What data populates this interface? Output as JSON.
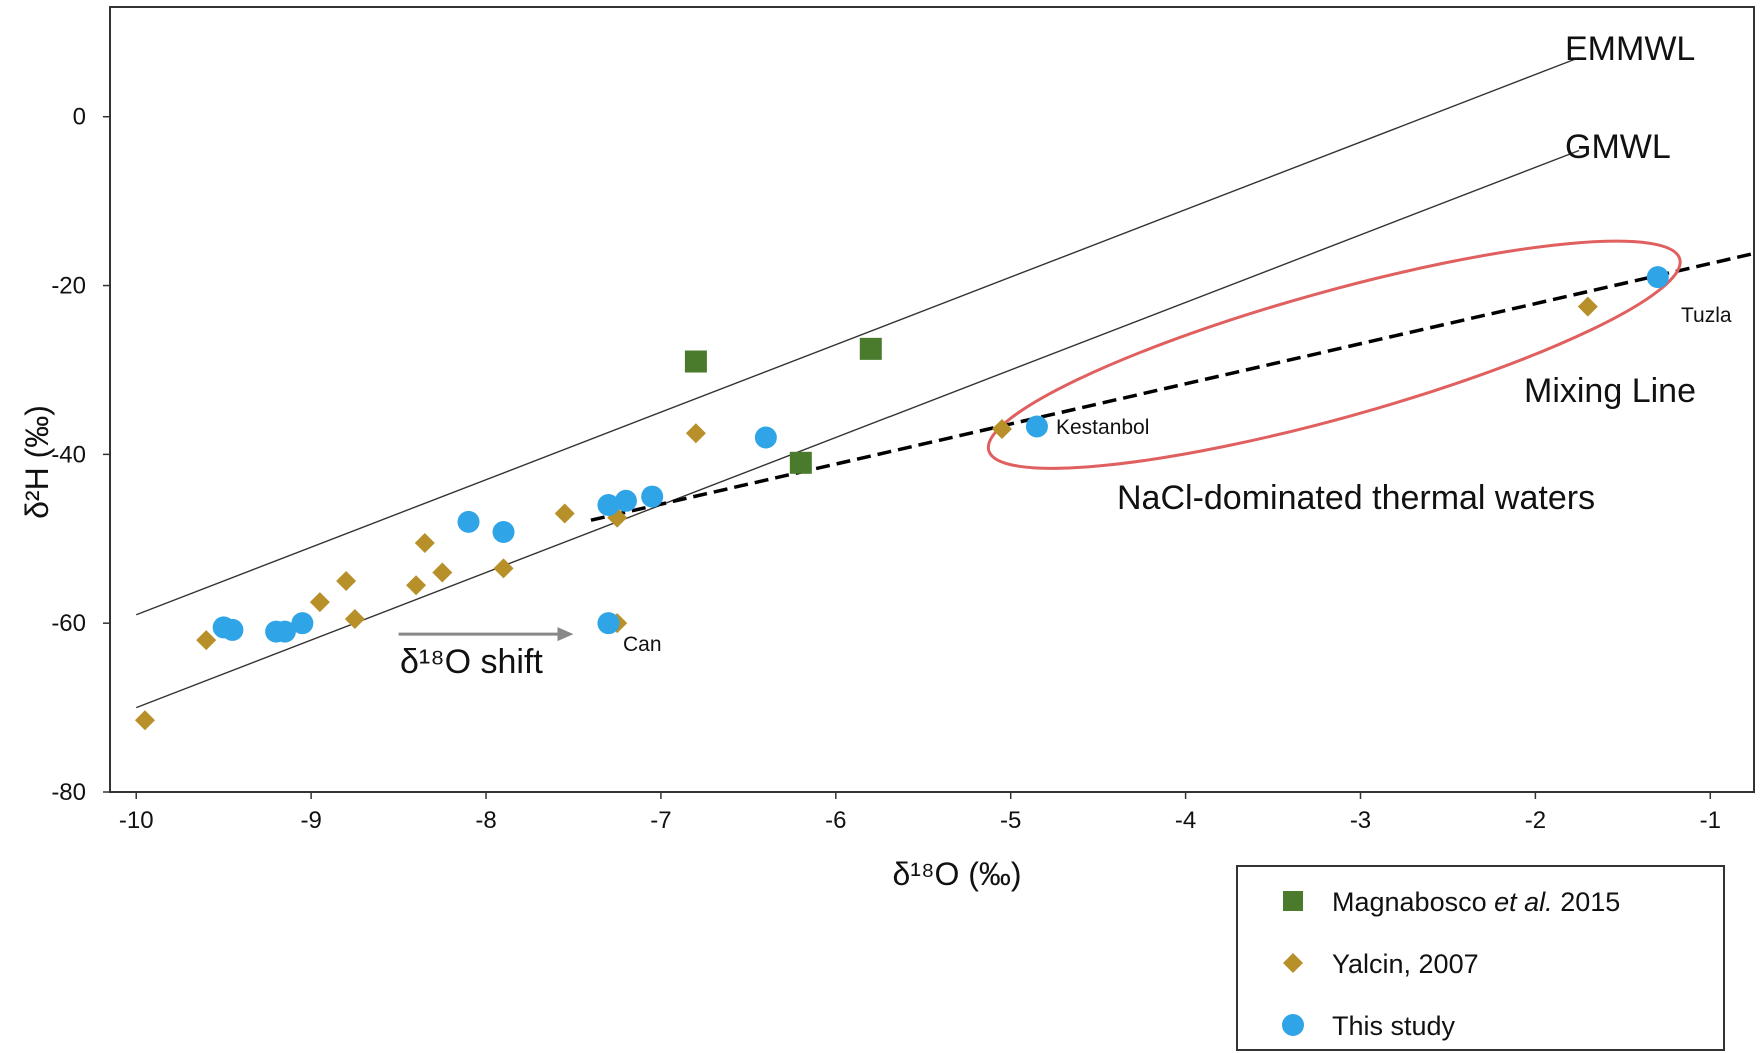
{
  "chart_data": {
    "type": "scatter",
    "xlabel": "δ¹⁸O (‰)",
    "ylabel": "δ²H (‰)",
    "xlim": [
      -10.15,
      -0.75
    ],
    "ylim": [
      -80,
      13
    ],
    "xticks": [
      -10,
      -9,
      -8,
      -7,
      -6,
      -5,
      -4,
      -3,
      -2,
      -1
    ],
    "yticks": [
      0,
      -20,
      -40,
      -60,
      -80
    ],
    "grid": false,
    "series": [
      {
        "name": "Magnabosco",
        "legend_label": "Magnabosco",
        "legend_italic": "et al.",
        "legend_suffix": "2015",
        "marker": "square",
        "color": "#4a7a2c",
        "points": [
          [
            -6.8,
            -29
          ],
          [
            -5.8,
            -27.5
          ],
          [
            -6.2,
            -41
          ]
        ]
      },
      {
        "name": "Yalcin, 2007",
        "legend_label": "Yalcin, 2007",
        "marker": "diamond",
        "color": "#b8902a",
        "points": [
          [
            -9.95,
            -71.5
          ],
          [
            -9.6,
            -62
          ],
          [
            -9.15,
            -61
          ],
          [
            -8.95,
            -57.5
          ],
          [
            -8.8,
            -55
          ],
          [
            -8.75,
            -59.5
          ],
          [
            -8.4,
            -55.5
          ],
          [
            -8.35,
            -50.5
          ],
          [
            -8.25,
            -54
          ],
          [
            -7.9,
            -53.5
          ],
          [
            -7.55,
            -47
          ],
          [
            -7.25,
            -47.5
          ],
          [
            -7.25,
            -60
          ],
          [
            -6.8,
            -37.5
          ],
          [
            -5.05,
            -37
          ],
          [
            -1.7,
            -22.5
          ]
        ]
      },
      {
        "name": "This study",
        "legend_label": "This study",
        "marker": "circle",
        "color": "#2fa4e7",
        "points": [
          [
            -9.5,
            -60.5
          ],
          [
            -9.45,
            -60.8
          ],
          [
            -9.2,
            -61
          ],
          [
            -9.15,
            -61
          ],
          [
            -9.05,
            -60
          ],
          [
            -8.1,
            -48
          ],
          [
            -7.9,
            -49.2
          ],
          [
            -7.3,
            -46
          ],
          [
            -7.2,
            -45.5
          ],
          [
            -7.05,
            -45
          ],
          [
            -7.3,
            -60
          ],
          [
            -6.4,
            -38
          ],
          [
            -4.85,
            -36.7
          ],
          [
            -1.3,
            -19
          ]
        ]
      }
    ],
    "lines": [
      {
        "name": "EMMWL",
        "style": "solid",
        "x": [
          -10,
          -1.75
        ],
        "y": [
          -59,
          7
        ]
      },
      {
        "name": "GMWL",
        "style": "solid",
        "x": [
          -10,
          -1.75
        ],
        "y": [
          -70,
          -4
        ]
      },
      {
        "name": "Mixing Line",
        "style": "dashed",
        "x": [
          -7.4,
          -0.75
        ],
        "y": [
          -47.8,
          -16.2
        ]
      }
    ],
    "ellipse": {
      "name": "NaCl-dominated thermal waters",
      "center": [
        -3.15,
        -28.2
      ],
      "rx": 2.05,
      "ry": 7.5,
      "angle_deg": -15.5,
      "color": "#e06060"
    },
    "arrow": {
      "label": "δ¹⁸O shift",
      "from": [
        -8.5,
        -61.3
      ],
      "to": [
        -7.5,
        -61.3
      ],
      "color": "#888888"
    },
    "annotations": {
      "emmwl": "EMMWL",
      "gmwl": "GMWL",
      "mixing": "Mixing Line",
      "nacl": "NaCl-dominated thermal waters",
      "shift": "δ¹⁸O shift",
      "tuzla": "Tuzla",
      "kestanbol": "Kestanbol",
      "can": "Can"
    }
  }
}
